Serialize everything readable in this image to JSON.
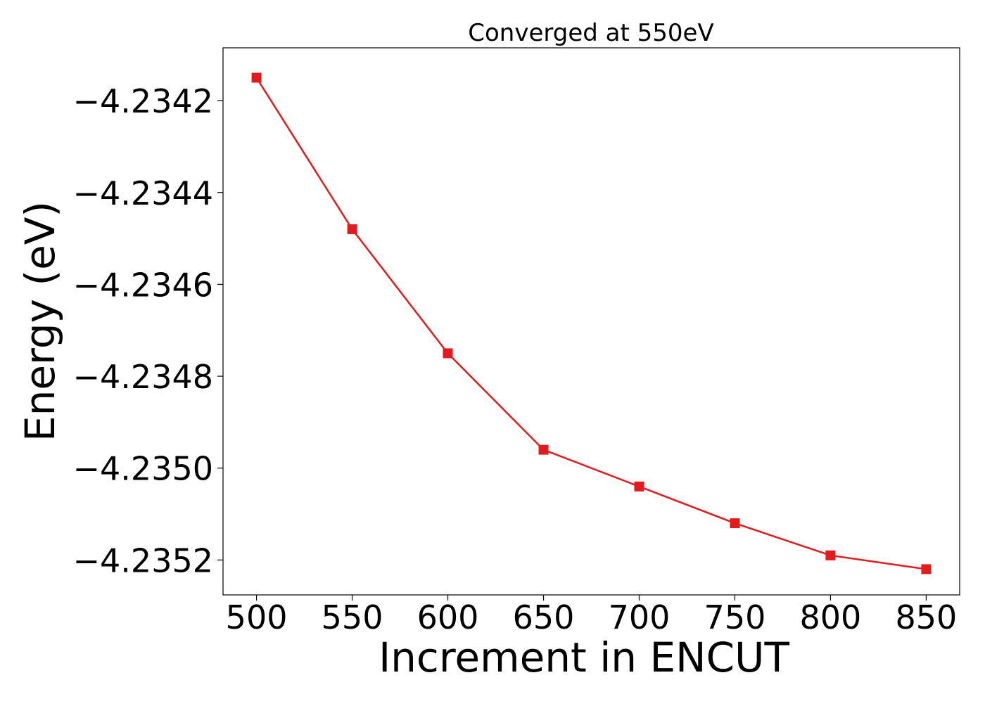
{
  "chart_data": {
    "type": "line",
    "title": "Converged at 550eV",
    "xlabel": "Increment in ENCUT",
    "ylabel": "Energy (eV)",
    "x": [
      500,
      550,
      600,
      650,
      700,
      750,
      800,
      850
    ],
    "series": [
      {
        "values": [
          -4.23415,
          -4.23448,
          -4.23475,
          -4.23496,
          -4.23504,
          -4.23512,
          -4.23519,
          -4.23522
        ],
        "color": "#e41a1c",
        "marker": "square"
      }
    ],
    "xticks": [
      500,
      550,
      600,
      650,
      700,
      750,
      800,
      850
    ],
    "xtick_labels": [
      "500",
      "550",
      "600",
      "650",
      "700",
      "750",
      "800",
      "850"
    ],
    "yticks": [
      -4.2342,
      -4.2344,
      -4.2346,
      -4.2348,
      -4.235,
      -4.2352
    ],
    "ytick_labels": [
      "−4.2342",
      "−4.2344",
      "−4.2346",
      "−4.2348",
      "−4.2350",
      "−4.2352"
    ],
    "xlim": [
      482.5,
      867.5
    ],
    "ylim": [
      -4.235276,
      -4.234085
    ],
    "grid": false,
    "legend": "none"
  }
}
